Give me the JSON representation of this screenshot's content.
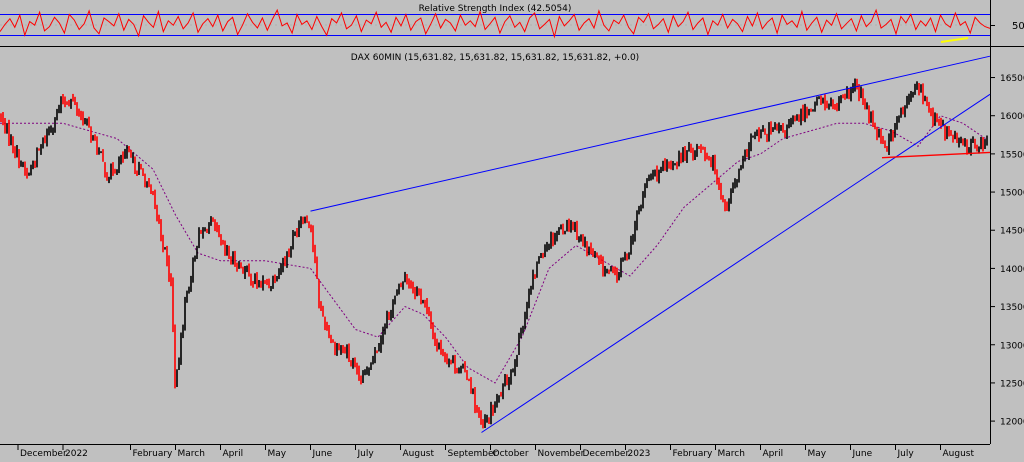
{
  "colors": {
    "background": "#c0c0c0",
    "rsi_line": "#ff0000",
    "rsi_bands": "#0000ff",
    "candle_up": "#000000",
    "candle_down": "#ff0000",
    "moving_average": "#800080",
    "trendlines": "#0000ff",
    "support_line": "#ff0000",
    "rsi_mark": "#ffff00"
  },
  "chart_data": [
    {
      "type": "line",
      "title": "Relative Strength Index (42.5054)",
      "indicator": "RSI",
      "last_value": 42.5054,
      "y_tick_labels": [
        "50"
      ],
      "bands": [
        70,
        30
      ],
      "ylim": [
        18,
        82
      ],
      "grid": false,
      "series": [
        {
          "values": [
            38,
            48,
            56,
            44,
            61,
            33,
            52,
            47,
            65,
            39,
            45,
            58,
            50,
            36,
            62,
            54,
            41,
            49,
            67,
            43,
            35,
            57,
            52,
            46,
            63,
            40,
            55,
            48,
            32,
            60,
            51,
            44,
            66,
            38,
            53,
            47,
            59,
            42,
            50,
            64,
            37,
            49,
            56,
            45,
            61,
            39,
            52,
            58,
            34,
            47,
            63,
            51,
            43,
            57,
            40,
            55,
            68,
            46,
            50,
            36,
            62,
            48,
            53,
            41,
            59,
            45,
            33,
            56,
            50,
            64,
            42,
            47,
            60,
            38,
            54,
            49,
            65,
            44,
            51,
            37,
            58,
            46,
            62,
            40,
            52,
            57,
            35,
            48,
            63,
            43,
            55,
            50,
            39,
            61,
            47,
            53,
            45,
            66,
            41,
            49,
            58,
            36,
            52,
            60,
            44,
            51,
            38,
            57,
            64,
            42,
            48,
            55,
            31,
            59,
            46,
            53,
            62,
            40,
            50,
            56,
            43,
            67,
            47,
            39,
            54,
            49,
            61,
            44,
            35,
            58,
            51,
            63,
            42,
            48,
            56,
            37,
            60,
            45,
            52,
            65,
            41,
            50,
            57,
            34,
            53,
            47,
            62,
            43,
            55,
            49,
            38,
            59,
            46,
            64,
            42,
            51,
            57,
            36,
            61,
            48,
            53,
            44,
            66,
            40,
            50,
            58,
            37,
            54,
            47,
            63,
            42,
            49,
            56,
            39,
            60,
            45,
            52,
            68,
            43,
            48,
            55,
            35,
            59,
            50,
            62,
            41,
            53,
            46,
            57,
            38,
            61,
            49,
            44,
            64,
            47,
            52,
            36,
            58,
            50,
            45,
            42.5
          ]
        }
      ]
    },
    {
      "type": "candlestick",
      "title": "DAX 60MIN (15,631.82, 15,631.82, 15,631.82, 15,631.82, +0.0)",
      "symbol": "DAX 60MIN",
      "last": {
        "open": 15631.82,
        "high": 15631.82,
        "low": 15631.82,
        "close": 15631.82,
        "change": 0.0
      },
      "ylim": [
        11700,
        16900
      ],
      "y_ticks": [
        12000,
        12500,
        13000,
        13500,
        14000,
        14500,
        15000,
        15500,
        16000,
        16500
      ],
      "x_tick_labels": [
        "December",
        "2022",
        "February",
        "March",
        "April",
        "May",
        "June",
        "July",
        "August",
        "September",
        "October",
        "November",
        "December",
        "2023",
        "February",
        "March",
        "April",
        "May",
        "June",
        "July",
        "August"
      ],
      "x_tick_positions": [
        0.0,
        1.0,
        2.5,
        3.5,
        4.5,
        5.5,
        6.5,
        7.5,
        8.5,
        9.5,
        10.5,
        11.5,
        12.5,
        13.5,
        14.5,
        15.5,
        16.5,
        17.5,
        18.5,
        19.5,
        20.5
      ],
      "x_range": [
        -0.4,
        21.6
      ],
      "grid": false,
      "close_path": {
        "x": [
          -0.4,
          0.2,
          0.6,
          1.0,
          1.2,
          1.6,
          2.0,
          2.4,
          2.8,
          3.0,
          3.2,
          3.4,
          3.5,
          3.7,
          4.0,
          4.3,
          4.6,
          5.0,
          5.3,
          5.6,
          6.0,
          6.3,
          6.5,
          6.7,
          7.0,
          7.3,
          7.6,
          8.0,
          8.3,
          8.6,
          9.0,
          9.3,
          9.6,
          10.0,
          10.3,
          10.6,
          11.0,
          11.3,
          11.6,
          12.0,
          12.3,
          12.6,
          13.0,
          13.3,
          13.6,
          14.0,
          14.4,
          14.8,
          15.2,
          15.5,
          15.7,
          16.0,
          16.3,
          16.7,
          17.0,
          17.4,
          17.8,
          18.2,
          18.6,
          19.0,
          19.3,
          19.6,
          20.0,
          20.3,
          20.6,
          21.0,
          21.3
        ],
        "y": [
          16000,
          15200,
          15700,
          16200,
          16200,
          15800,
          15200,
          15500,
          15200,
          14900,
          14400,
          13800,
          12400,
          13500,
          14400,
          14600,
          14200,
          14000,
          13800,
          13800,
          14200,
          14700,
          14600,
          13500,
          13000,
          12900,
          12500,
          13000,
          13500,
          13900,
          13600,
          13000,
          12800,
          12600,
          11900,
          12200,
          12700,
          13500,
          14200,
          14500,
          14600,
          14300,
          14000,
          13900,
          14300,
          15200,
          15300,
          15500,
          15600,
          15300,
          14800,
          15200,
          15700,
          15800,
          15800,
          16000,
          16200,
          16100,
          16400,
          15900,
          15600,
          16000,
          16400,
          16000,
          15800,
          15600,
          15632
        ]
      },
      "moving_average": {
        "x": [
          -0.4,
          1.0,
          2.2,
          3.0,
          3.5,
          4.0,
          4.5,
          5.5,
          6.5,
          7.0,
          7.5,
          8.0,
          8.6,
          9.0,
          9.5,
          10.0,
          10.6,
          11.2,
          11.8,
          12.4,
          13.0,
          13.6,
          14.2,
          14.8,
          15.4,
          16.0,
          16.5,
          17.0,
          17.6,
          18.2,
          18.8,
          19.4,
          20.0,
          20.5,
          21.0,
          21.5
        ],
        "y": [
          15900,
          15900,
          15700,
          15300,
          14700,
          14200,
          14100,
          14100,
          14000,
          13600,
          13200,
          13100,
          13500,
          13400,
          13100,
          12700,
          12500,
          13100,
          14000,
          14300,
          14100,
          13900,
          14300,
          14800,
          15100,
          15400,
          15500,
          15700,
          15800,
          15900,
          15900,
          15800,
          15600,
          16000,
          15900,
          15700
        ]
      },
      "trendlines": [
        {
          "name": "upper",
          "x": [
            6.5,
            21.6
          ],
          "y": [
            14750,
            16780
          ]
        },
        {
          "name": "lower",
          "x": [
            10.3,
            21.6
          ],
          "y": [
            11850,
            16280
          ]
        },
        {
          "name": "support",
          "x": [
            19.2,
            21.6
          ],
          "y": [
            15450,
            15520
          ]
        }
      ]
    }
  ]
}
